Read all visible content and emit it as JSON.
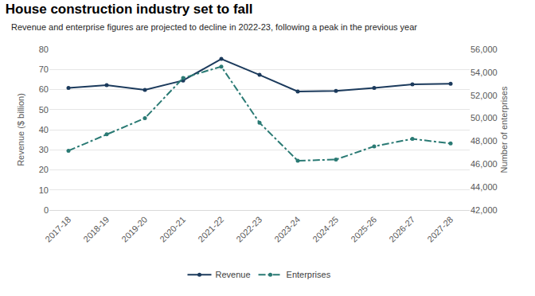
{
  "chart_data": {
    "type": "line",
    "title": "House construction industry set to fall",
    "subtitle": "Revenue and enterprise figures are projected to decline in 2022-23, following a peak in the previous year",
    "x_label": "",
    "y_label": "Revenue ($ billion)",
    "y2_label": "Number of enterprises",
    "categories": [
      "2017-18",
      "2018-19",
      "2019-20",
      "2020-21",
      "2021-22",
      "2022-23",
      "2023-24",
      "2024-25",
      "2025-26",
      "2026-27",
      "2027-28"
    ],
    "series": [
      {
        "name": "Revenue",
        "color": "#1b3a5c",
        "marker": "circle",
        "line_style": "solid",
        "values": [
          60.8,
          62.2,
          59.8,
          64.5,
          75.2,
          67.3,
          59.0,
          59.3,
          60.8,
          62.6,
          62.9
        ]
      },
      {
        "name": "Enterprises",
        "color": "#2a7a74",
        "marker": "circle",
        "line_style": "dashdot",
        "axis": "y2",
        "values": [
          47170,
          48600,
          50000,
          53500,
          54500,
          49600,
          46300,
          46400,
          47550,
          48200,
          47800
        ]
      }
    ],
    "ylim": [
      0,
      80
    ],
    "yticks": [
      0,
      10,
      20,
      30,
      40,
      50,
      60,
      70,
      80
    ],
    "y2lim": [
      42000,
      56000
    ],
    "y2ticks": [
      {
        "value": 42000,
        "label": "42,000"
      },
      {
        "value": 44000,
        "label": "44,000"
      },
      {
        "value": 46000,
        "label": "46,000"
      },
      {
        "value": 48000,
        "label": "48,000"
      },
      {
        "value": 50000,
        "label": "50,000"
      },
      {
        "value": 52000,
        "label": "52,000"
      },
      {
        "value": 54000,
        "label": "54,000"
      },
      {
        "value": 56000,
        "label": "56,000"
      }
    ],
    "grid": true,
    "legend": "bottom"
  }
}
